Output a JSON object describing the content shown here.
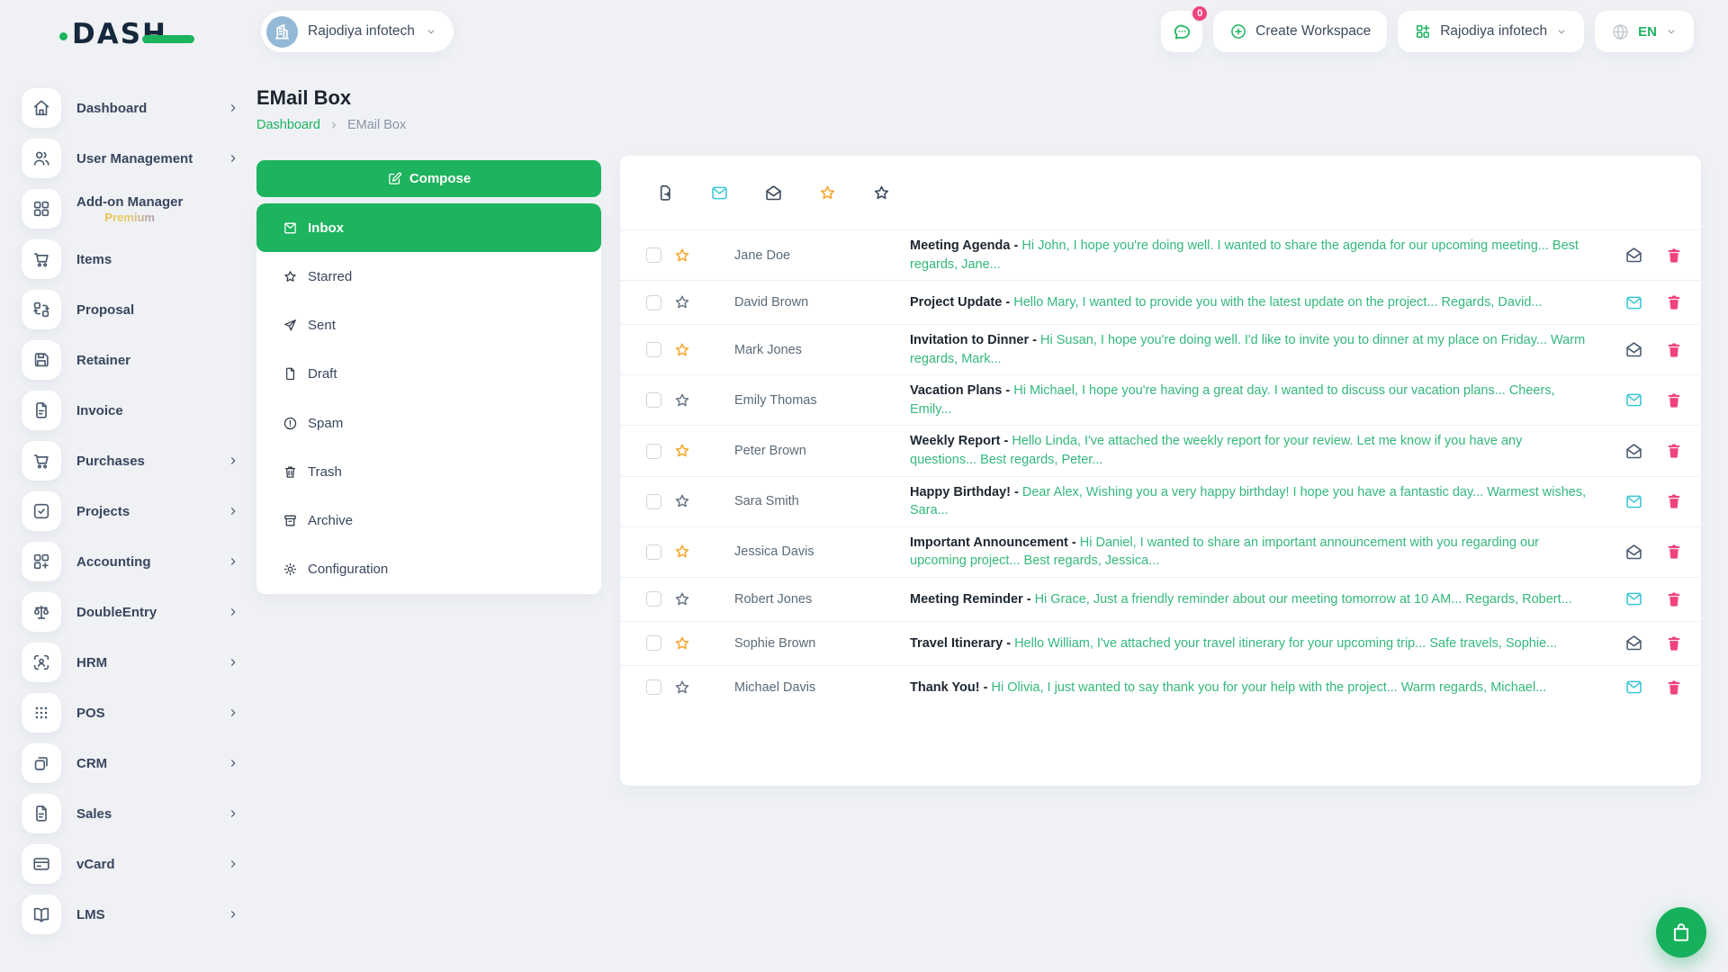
{
  "brand": {
    "name": "DASH"
  },
  "header": {
    "workspace_selector": {
      "label": "Rajodiya infotech",
      "avatar_icon": "building"
    },
    "messages": {
      "icon": "chat",
      "badge": "0"
    },
    "create_workspace": {
      "label": "Create Workspace",
      "icon": "plus-circle"
    },
    "account_selector": {
      "label": "Rajodiya infotech",
      "icon": "grid-add"
    },
    "language_selector": {
      "label": "EN",
      "icon": "globe"
    }
  },
  "sidebar": {
    "items": [
      {
        "label": "Dashboard",
        "icon": "home",
        "chevron": true
      },
      {
        "label": "User Management",
        "icon": "users",
        "chevron": true
      },
      {
        "label": "Add-on Manager",
        "sublabel": "Premium",
        "icon": "grid",
        "chevron": false
      },
      {
        "label": "Items",
        "icon": "cart",
        "chevron": false
      },
      {
        "label": "Proposal",
        "icon": "transfer",
        "chevron": false
      },
      {
        "label": "Retainer",
        "icon": "save",
        "chevron": false
      },
      {
        "label": "Invoice",
        "icon": "file-text",
        "chevron": false
      },
      {
        "label": "Purchases",
        "icon": "cart",
        "chevron": true
      },
      {
        "label": "Projects",
        "icon": "check-square",
        "chevron": true
      },
      {
        "label": "Accounting",
        "icon": "grid-plus",
        "chevron": true
      },
      {
        "label": "DoubleEntry",
        "icon": "scales",
        "chevron": true
      },
      {
        "label": "HRM",
        "icon": "scan-user",
        "chevron": true
      },
      {
        "label": "POS",
        "icon": "dots-grid",
        "chevron": true
      },
      {
        "label": "CRM",
        "icon": "copy",
        "chevron": true
      },
      {
        "label": "Sales",
        "icon": "file-text",
        "chevron": true
      },
      {
        "label": "vCard",
        "icon": "credit-card",
        "chevron": true
      },
      {
        "label": "LMS",
        "icon": "book",
        "chevron": true
      }
    ]
  },
  "page": {
    "title": "EMail Box",
    "breadcrumb_home": "Dashboard",
    "breadcrumb_current": "EMail Box"
  },
  "mail_nav": {
    "compose_label": "Compose",
    "folders": [
      {
        "label": "Inbox",
        "icon": "inbox-mail",
        "active": true
      },
      {
        "label": "Starred",
        "icon": "star"
      },
      {
        "label": "Sent",
        "icon": "send"
      },
      {
        "label": "Draft",
        "icon": "file"
      },
      {
        "label": "Spam",
        "icon": "alert-circle"
      },
      {
        "label": "Trash",
        "icon": "trash-outline"
      },
      {
        "label": "Archive",
        "icon": "archive"
      },
      {
        "label": "Configuration",
        "icon": "gear"
      }
    ]
  },
  "mail_toolbar": {
    "icons": [
      {
        "icon": "file-export",
        "name": "new-draft-icon"
      },
      {
        "icon": "mail-closed",
        "name": "unread-mail-icon",
        "cyan": true
      },
      {
        "icon": "mail-open",
        "name": "read-mail-icon"
      },
      {
        "icon": "star",
        "name": "starred-filter-icon",
        "orange": true
      },
      {
        "icon": "star",
        "name": "unstarred-filter-icon"
      }
    ]
  },
  "mail_list": {
    "subject_separator": " - "
  },
  "emails": [
    {
      "sender": "Jane Doe",
      "subject": "Meeting Agenda",
      "preview": "Hi John, I hope you're doing well. I wanted to share the agenda for our upcoming meeting... Best regards, Jane...",
      "starred": true,
      "status_icon": "mail-open"
    },
    {
      "sender": "David Brown",
      "subject": "Project Update",
      "preview": "Hello Mary, I wanted to provide you with the latest update on the project... Regards, David...",
      "starred": false,
      "status_icon": "mail-closed"
    },
    {
      "sender": "Mark Jones",
      "subject": "Invitation to Dinner",
      "preview": "Hi Susan, I hope you're doing well. I'd like to invite you to dinner at my place on Friday... Warm regards, Mark...",
      "starred": true,
      "status_icon": "mail-open"
    },
    {
      "sender": "Emily Thomas",
      "subject": "Vacation Plans",
      "preview": "Hi Michael, I hope you're having a great day. I wanted to discuss our vacation plans... Cheers, Emily...",
      "starred": false,
      "status_icon": "mail-closed"
    },
    {
      "sender": "Peter Brown",
      "subject": "Weekly Report",
      "preview": "Hello Linda, I've attached the weekly report for your review. Let me know if you have any questions... Best regards, Peter...",
      "starred": true,
      "status_icon": "mail-open"
    },
    {
      "sender": "Sara Smith",
      "subject": "Happy Birthday!",
      "preview": "Dear Alex, Wishing you a very happy birthday! I hope you have a fantastic day... Warmest wishes, Sara...",
      "starred": false,
      "status_icon": "mail-closed"
    },
    {
      "sender": "Jessica Davis",
      "subject": "Important Announcement",
      "preview": "Hi Daniel, I wanted to share an important announcement with you regarding our upcoming project... Best regards, Jessica...",
      "starred": true,
      "status_icon": "mail-open"
    },
    {
      "sender": "Robert Jones",
      "subject": "Meeting Reminder",
      "preview": "Hi Grace, Just a friendly reminder about our meeting tomorrow at 10 AM... Regards, Robert...",
      "starred": false,
      "status_icon": "mail-closed"
    },
    {
      "sender": "Sophie Brown",
      "subject": "Travel Itinerary",
      "preview": "Hello William, I've attached your travel itinerary for your upcoming trip... Safe travels, Sophie...",
      "starred": true,
      "status_icon": "mail-open"
    },
    {
      "sender": "Michael Davis",
      "subject": "Thank You!",
      "preview": "Hi Olivia, I just wanted to say thank you for your help with the project... Warm regards, Michael...",
      "starred": false,
      "status_icon": "mail-closed"
    }
  ],
  "colors": {
    "primary_green": "#1db35f",
    "text_green": "#34b87c",
    "cyan": "#3ac7d7",
    "pink": "#f0437e",
    "orange": "#f7a62c",
    "navy": "#1d2630"
  }
}
